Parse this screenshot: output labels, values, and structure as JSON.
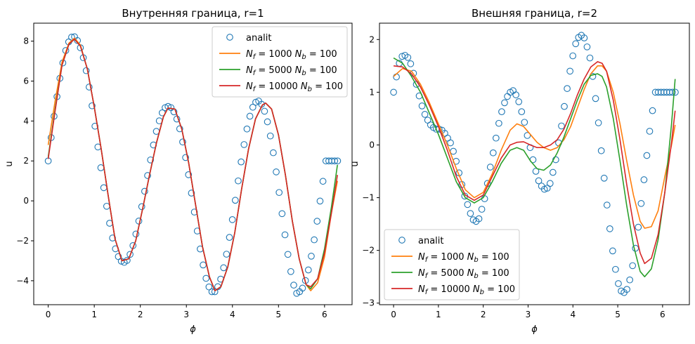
{
  "figure": {
    "background": "#ffffff"
  },
  "chart_data": [
    {
      "type": "line",
      "title": "Внутренняя граница, r=1",
      "xlabel": "ϕ",
      "ylabel": "u",
      "xlim": [
        -0.3145,
        6.5976
      ],
      "ylim": [
        -5.2,
        8.9
      ],
      "xticks": [
        0,
        1,
        2,
        3,
        4,
        5,
        6
      ],
      "yticks": [
        -4,
        -2,
        0,
        2,
        4,
        6,
        8
      ],
      "xtick_labels": [
        "0",
        "1",
        "2",
        "3",
        "4",
        "5",
        "6"
      ],
      "ytick_labels": [
        "−4",
        "−2",
        "0",
        "2",
        "4",
        "6",
        "8"
      ],
      "grid": false,
      "legend_position": "top-right",
      "series": [
        {
          "name": "analit",
          "kind": "markers",
          "color": "#1f77b4",
          "x": [
            0,
            0.0635,
            0.127,
            0.1904,
            0.2539,
            0.3174,
            0.3808,
            0.4443,
            0.5078,
            0.5712,
            0.6347,
            0.6982,
            0.7616,
            0.8251,
            0.8886,
            0.952,
            1.0155,
            1.079,
            1.1424,
            1.2059,
            1.2694,
            1.3328,
            1.3963,
            1.4598,
            1.5232,
            1.5867,
            1.6502,
            1.7136,
            1.7771,
            1.8406,
            1.904,
            1.9675,
            2.031,
            2.0944,
            2.1579,
            2.2214,
            2.2848,
            2.3483,
            2.4118,
            2.4752,
            2.5387,
            2.6022,
            2.6656,
            2.7291,
            2.7926,
            2.856,
            2.9195,
            2.983,
            3.0464,
            3.1099,
            3.1734,
            3.2368,
            3.3003,
            3.3638,
            3.4272,
            3.4907,
            3.5542,
            3.6176,
            3.6811,
            3.7446,
            3.808,
            3.8715,
            3.935,
            3.9984,
            4.0619,
            4.1254,
            4.1888,
            4.2523,
            4.3158,
            4.3792,
            4.4427,
            4.5062,
            4.5696,
            4.6331,
            4.6966,
            4.76,
            4.8235,
            4.887,
            4.9504,
            5.0139,
            5.0774,
            5.1408,
            5.2043,
            5.2678,
            5.3312,
            5.3947,
            5.4582,
            5.5216,
            5.5851,
            5.6486,
            5.712,
            5.7755,
            5.839,
            5.9024,
            5.9659,
            6.0294,
            6.0928,
            6.1563,
            6.2198,
            6.2832
          ],
          "y": [
            2.0,
            3.17,
            4.24,
            5.22,
            6.14,
            6.91,
            7.53,
            7.96,
            8.2,
            8.22,
            8.03,
            7.67,
            7.17,
            6.52,
            5.7,
            4.76,
            3.74,
            2.7,
            1.66,
            0.66,
            -0.27,
            -1.12,
            -1.86,
            -2.4,
            -2.79,
            -3.02,
            -3.08,
            -2.98,
            -2.68,
            -2.24,
            -1.66,
            -1.01,
            -0.29,
            0.48,
            1.27,
            2.05,
            2.8,
            3.48,
            4.01,
            4.41,
            4.67,
            4.73,
            4.67,
            4.46,
            4.1,
            3.61,
            2.95,
            2.17,
            1.31,
            0.39,
            -0.56,
            -1.51,
            -2.41,
            -3.21,
            -3.88,
            -4.31,
            -4.55,
            -4.55,
            -4.3,
            -3.92,
            -3.35,
            -2.67,
            -1.83,
            -0.94,
            0.03,
            1.0,
            1.95,
            2.82,
            3.6,
            4.24,
            4.69,
            4.94,
            5.0,
            4.84,
            4.49,
            3.96,
            3.25,
            2.41,
            1.45,
            0.42,
            -0.64,
            -1.7,
            -2.68,
            -3.54,
            -4.22,
            -4.63,
            -4.55,
            -4.37,
            -3.99,
            -3.46,
            -2.77,
            -1.95,
            -1.02,
            -0.01,
            0.98,
            2.0,
            2.0,
            2.0,
            2.0,
            2.0
          ]
        },
        {
          "name": "N_f=1000 N_b=100",
          "kind": "line",
          "color": "#ff7f0e",
          "x": [
            0,
            0.15,
            0.3,
            0.45,
            0.57,
            0.7,
            0.85,
            1.0,
            1.15,
            1.3,
            1.45,
            1.6,
            1.75,
            1.9,
            2.05,
            2.2,
            2.35,
            2.5,
            2.6,
            2.75,
            2.9,
            3.05,
            3.2,
            3.35,
            3.5,
            3.62,
            3.75,
            3.9,
            4.05,
            4.2,
            4.35,
            4.5,
            4.65,
            4.72,
            4.85,
            5.0,
            5.15,
            5.3,
            5.45,
            5.6,
            5.7,
            5.85,
            6.0,
            6.15,
            6.28
          ],
          "y": [
            2.8,
            5.0,
            6.95,
            7.9,
            8.15,
            7.8,
            6.6,
            4.7,
            2.6,
            0.3,
            -1.9,
            -3.0,
            -2.9,
            -2.0,
            -0.4,
            1.3,
            2.9,
            4.2,
            4.65,
            4.6,
            3.6,
            1.9,
            -0.2,
            -2.3,
            -3.8,
            -4.5,
            -4.3,
            -3.3,
            -1.6,
            0.6,
            2.6,
            4.1,
            4.8,
            4.9,
            4.6,
            3.3,
            1.3,
            -1.0,
            -2.9,
            -4.2,
            -4.5,
            -4.1,
            -2.8,
            -0.6,
            1.0
          ]
        },
        {
          "name": "N_f=5000 N_b=100",
          "kind": "line",
          "color": "#2ca02c",
          "x": [
            0,
            0.15,
            0.3,
            0.45,
            0.57,
            0.7,
            0.85,
            1.0,
            1.15,
            1.3,
            1.45,
            1.6,
            1.75,
            1.9,
            2.05,
            2.2,
            2.35,
            2.5,
            2.6,
            2.75,
            2.9,
            3.05,
            3.2,
            3.35,
            3.5,
            3.62,
            3.75,
            3.9,
            4.05,
            4.2,
            4.35,
            4.5,
            4.65,
            4.72,
            4.85,
            5.0,
            5.15,
            5.3,
            5.45,
            5.6,
            5.7,
            5.85,
            6.0,
            6.15,
            6.28
          ],
          "y": [
            2.2,
            4.6,
            6.8,
            7.85,
            8.1,
            7.75,
            6.6,
            4.7,
            2.6,
            0.3,
            -1.9,
            -3.0,
            -2.9,
            -2.0,
            -0.4,
            1.3,
            2.9,
            4.2,
            4.65,
            4.6,
            3.6,
            1.9,
            -0.2,
            -2.3,
            -3.8,
            -4.5,
            -4.3,
            -3.3,
            -1.6,
            0.6,
            2.6,
            4.1,
            4.8,
            4.9,
            4.6,
            3.3,
            1.3,
            -1.0,
            -2.9,
            -4.2,
            -4.4,
            -3.9,
            -2.4,
            -0.3,
            1.8
          ]
        },
        {
          "name": "N_f=10000 N_b=100",
          "kind": "line",
          "color": "#d62728",
          "x": [
            0,
            0.15,
            0.3,
            0.45,
            0.57,
            0.7,
            0.85,
            1.0,
            1.15,
            1.3,
            1.45,
            1.6,
            1.75,
            1.9,
            2.05,
            2.2,
            2.35,
            2.5,
            2.6,
            2.75,
            2.9,
            3.05,
            3.2,
            3.35,
            3.5,
            3.62,
            3.75,
            3.9,
            4.05,
            4.2,
            4.35,
            4.5,
            4.65,
            4.72,
            4.85,
            5.0,
            5.15,
            5.3,
            5.45,
            5.6,
            5.7,
            5.85,
            6.0,
            6.15,
            6.28
          ],
          "y": [
            2.1,
            4.5,
            6.8,
            7.85,
            8.1,
            7.75,
            6.6,
            4.7,
            2.6,
            0.3,
            -1.9,
            -3.0,
            -2.9,
            -2.0,
            -0.4,
            1.3,
            2.9,
            4.2,
            4.65,
            4.6,
            3.6,
            1.9,
            -0.2,
            -2.3,
            -3.8,
            -4.5,
            -4.3,
            -3.3,
            -1.6,
            0.6,
            2.6,
            4.1,
            4.8,
            4.9,
            4.6,
            3.3,
            1.3,
            -1.0,
            -2.9,
            -4.2,
            -4.3,
            -3.9,
            -2.6,
            -0.6,
            1.3
          ]
        }
      ]
    },
    {
      "type": "line",
      "title": "Внешняя граница, r=2",
      "xlabel": "ϕ",
      "ylabel": "u",
      "xlim": [
        -0.3145,
        6.5976
      ],
      "ylim": [
        -3.03,
        2.31
      ],
      "xticks": [
        0,
        1,
        2,
        3,
        4,
        5,
        6
      ],
      "yticks": [
        -3,
        -2,
        -1,
        0,
        1,
        2
      ],
      "xtick_labels": [
        "0",
        "1",
        "2",
        "3",
        "4",
        "5",
        "6"
      ],
      "ytick_labels": [
        "−3",
        "−2",
        "−1",
        "0",
        "1",
        "2"
      ],
      "grid": false,
      "legend_position": "bottom-left",
      "series": [
        {
          "name": "analit",
          "kind": "markers",
          "color": "#1f77b4",
          "x": [
            0,
            0.0635,
            0.127,
            0.1904,
            0.2539,
            0.3174,
            0.3808,
            0.4443,
            0.5078,
            0.5712,
            0.6347,
            0.6982,
            0.7616,
            0.8251,
            0.8886,
            0.952,
            1.0155,
            1.079,
            1.1424,
            1.2059,
            1.2694,
            1.3328,
            1.3963,
            1.4598,
            1.5232,
            1.5867,
            1.6502,
            1.7136,
            1.7771,
            1.8406,
            1.904,
            1.9675,
            2.031,
            2.0944,
            2.1579,
            2.2214,
            2.2848,
            2.3483,
            2.4118,
            2.4752,
            2.5387,
            2.6022,
            2.6656,
            2.7291,
            2.7926,
            2.856,
            2.9195,
            2.983,
            3.0464,
            3.1099,
            3.1734,
            3.2368,
            3.3003,
            3.3638,
            3.4272,
            3.4907,
            3.5542,
            3.6176,
            3.6811,
            3.7446,
            3.808,
            3.8715,
            3.935,
            3.9984,
            4.0619,
            4.1254,
            4.1888,
            4.2523,
            4.3158,
            4.3792,
            4.4427,
            4.5062,
            4.5696,
            4.6331,
            4.6966,
            4.76,
            4.8235,
            4.887,
            4.9504,
            5.0139,
            5.0774,
            5.1408,
            5.2043,
            5.2678,
            5.3312,
            5.3947,
            5.4582,
            5.5216,
            5.5851,
            5.6486,
            5.712,
            5.7755,
            5.839,
            5.9024,
            5.9659,
            6.0294,
            6.0928,
            6.1563,
            6.2198,
            6.2832
          ],
          "y": [
            1.0,
            1.29,
            1.55,
            1.68,
            1.7,
            1.66,
            1.54,
            1.36,
            1.15,
            0.93,
            0.74,
            0.58,
            0.47,
            0.38,
            0.33,
            0.3,
            0.3,
            0.28,
            0.22,
            0.13,
            0.04,
            -0.12,
            -0.31,
            -0.53,
            -0.75,
            -0.97,
            -1.13,
            -1.3,
            -1.42,
            -1.45,
            -1.4,
            -1.22,
            -1.02,
            -0.73,
            -0.42,
            -0.15,
            0.13,
            0.41,
            0.63,
            0.8,
            0.92,
            1.0,
            1.03,
            0.95,
            0.82,
            0.63,
            0.43,
            0.18,
            -0.05,
            -0.28,
            -0.5,
            -0.68,
            -0.78,
            -0.84,
            -0.82,
            -0.73,
            -0.52,
            -0.28,
            0.04,
            0.36,
            0.73,
            1.07,
            1.4,
            1.69,
            1.92,
            2.04,
            2.08,
            2.03,
            1.86,
            1.65,
            1.3,
            0.88,
            0.42,
            -0.11,
            -0.63,
            -1.14,
            -1.59,
            -2.01,
            -2.36,
            -2.63,
            -2.77,
            -2.8,
            -2.74,
            -2.56,
            -2.29,
            -1.96,
            -1.56,
            -1.11,
            -0.66,
            -0.2,
            0.26,
            0.65,
            1.0,
            1.0,
            1.0,
            1.0,
            1.0,
            1.0,
            1.0,
            1.0
          ]
        },
        {
          "name": "N_f=1000 N_b=100",
          "kind": "line",
          "color": "#ff7f0e",
          "x": [
            0,
            0.2,
            0.4,
            0.6,
            0.8,
            1.0,
            1.2,
            1.4,
            1.6,
            1.8,
            2.0,
            2.2,
            2.4,
            2.6,
            2.75,
            2.9,
            3.05,
            3.2,
            3.35,
            3.5,
            3.65,
            3.8,
            3.95,
            4.1,
            4.25,
            4.4,
            4.55,
            4.65,
            4.75,
            4.9,
            5.05,
            5.2,
            5.35,
            5.5,
            5.6,
            5.75,
            5.9,
            6.05,
            6.2,
            6.28
          ],
          "y": [
            1.3,
            1.45,
            1.4,
            1.15,
            0.8,
            0.4,
            0.0,
            -0.45,
            -0.85,
            -1.0,
            -0.9,
            -0.55,
            -0.1,
            0.28,
            0.4,
            0.35,
            0.2,
            0.05,
            -0.05,
            -0.1,
            -0.05,
            0.1,
            0.35,
            0.7,
            1.05,
            1.35,
            1.5,
            1.5,
            1.4,
            1.0,
            0.4,
            -0.3,
            -0.95,
            -1.45,
            -1.58,
            -1.55,
            -1.25,
            -0.6,
            0.0,
            0.38
          ]
        },
        {
          "name": "N_f=5000 N_b=100",
          "kind": "line",
          "color": "#2ca02c",
          "x": [
            0,
            0.2,
            0.4,
            0.6,
            0.8,
            1.0,
            1.2,
            1.4,
            1.6,
            1.8,
            2.0,
            2.2,
            2.4,
            2.6,
            2.75,
            2.9,
            3.05,
            3.2,
            3.35,
            3.5,
            3.65,
            3.8,
            3.95,
            4.1,
            4.25,
            4.4,
            4.55,
            4.65,
            4.75,
            4.9,
            5.05,
            5.2,
            5.35,
            5.5,
            5.6,
            5.75,
            5.9,
            6.05,
            6.2,
            6.28
          ],
          "y": [
            1.65,
            1.55,
            1.3,
            1.0,
            0.6,
            0.2,
            -0.25,
            -0.7,
            -1.0,
            -1.1,
            -1.0,
            -0.7,
            -0.35,
            -0.1,
            -0.05,
            -0.1,
            -0.3,
            -0.45,
            -0.48,
            -0.38,
            -0.15,
            0.15,
            0.5,
            0.85,
            1.15,
            1.32,
            1.35,
            1.3,
            1.1,
            0.5,
            -0.3,
            -1.15,
            -1.9,
            -2.4,
            -2.5,
            -2.35,
            -1.8,
            -0.9,
            0.4,
            1.25
          ]
        },
        {
          "name": "N_f=10000 N_b=100",
          "kind": "line",
          "color": "#d62728",
          "x": [
            0,
            0.2,
            0.4,
            0.6,
            0.8,
            1.0,
            1.2,
            1.4,
            1.6,
            1.8,
            2.0,
            2.2,
            2.4,
            2.6,
            2.75,
            2.9,
            3.05,
            3.2,
            3.35,
            3.5,
            3.65,
            3.8,
            3.95,
            4.1,
            4.25,
            4.4,
            4.55,
            4.65,
            4.75,
            4.9,
            5.05,
            5.2,
            5.35,
            5.5,
            5.6,
            5.75,
            5.9,
            6.05,
            6.2,
            6.28
          ],
          "y": [
            1.5,
            1.48,
            1.35,
            1.1,
            0.75,
            0.35,
            -0.1,
            -0.6,
            -0.95,
            -1.05,
            -0.95,
            -0.6,
            -0.25,
            0.0,
            0.05,
            0.06,
            0.0,
            -0.05,
            -0.05,
            0.0,
            0.1,
            0.3,
            0.6,
            0.95,
            1.25,
            1.48,
            1.58,
            1.55,
            1.4,
            0.85,
            0.1,
            -0.75,
            -1.5,
            -2.05,
            -2.25,
            -2.15,
            -1.7,
            -0.9,
            0.05,
            0.65
          ]
        }
      ]
    }
  ]
}
